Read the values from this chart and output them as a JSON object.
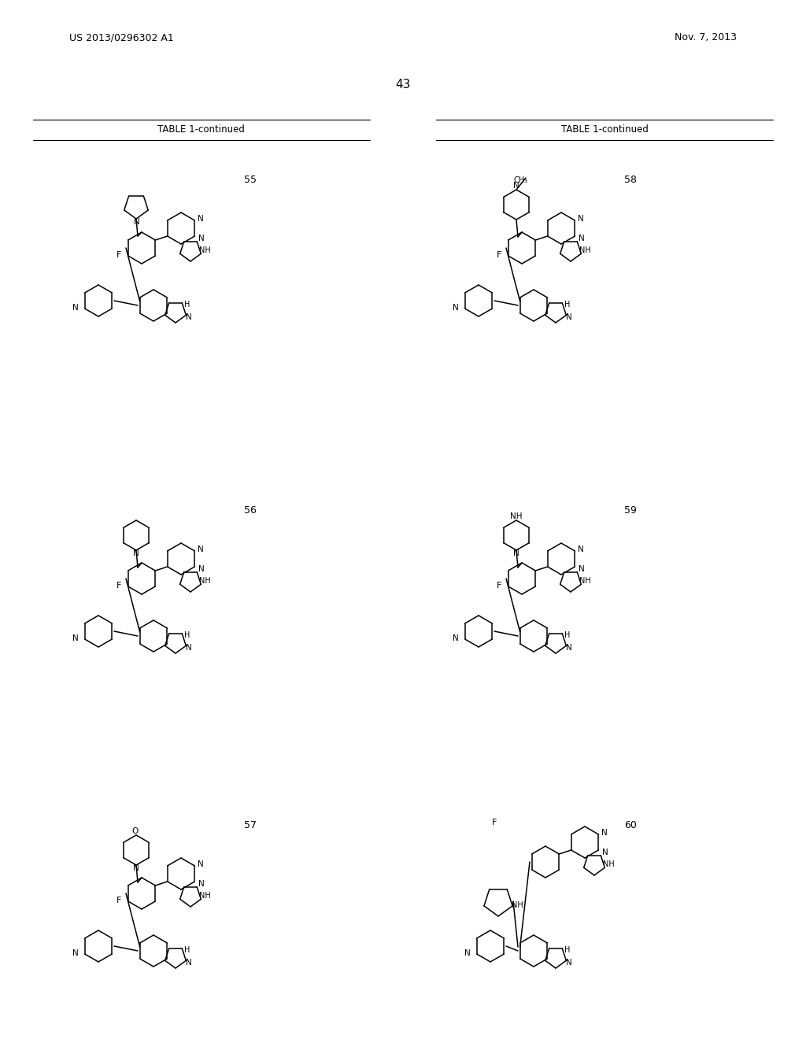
{
  "page_number": "43",
  "left_header": "US 2013/0296302 A1",
  "right_header": "Nov. 7, 2013",
  "table_label": "TABLE 1-continued",
  "background_color": "#ffffff",
  "text_color": "#000000",
  "compounds": [
    {
      "number": "55",
      "col": 0,
      "row": 0
    },
    {
      "number": "56",
      "col": 0,
      "row": 1
    },
    {
      "number": "57",
      "col": 0,
      "row": 2
    },
    {
      "number": "58",
      "col": 1,
      "row": 0
    },
    {
      "number": "59",
      "col": 1,
      "row": 1
    },
    {
      "number": "60",
      "col": 1,
      "row": 2
    }
  ],
  "figsize": [
    10.24,
    13.2
  ],
  "dpi": 100
}
